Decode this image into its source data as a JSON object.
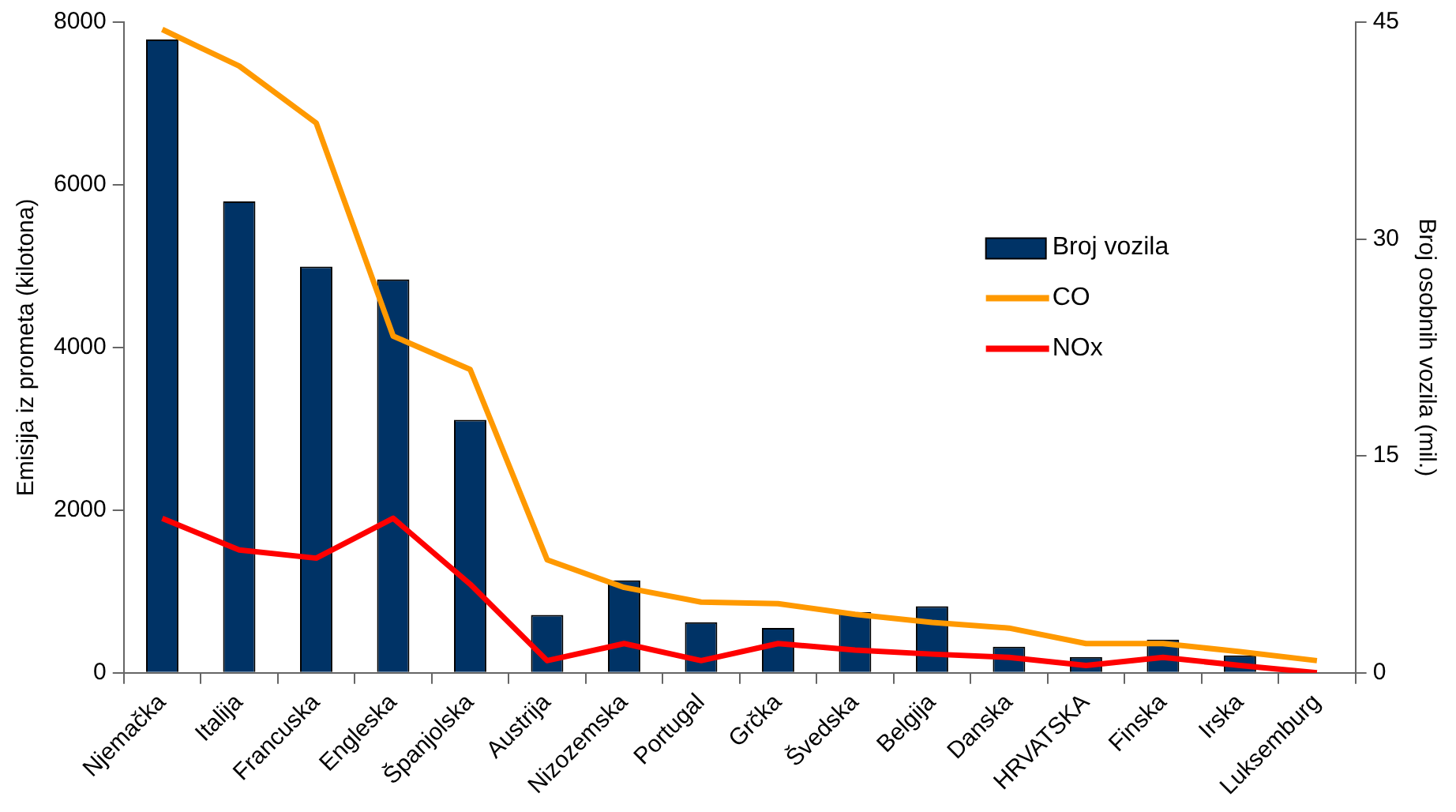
{
  "chart_data": {
    "type": "bar",
    "ylabel": "Emisija iz prometa (kilotona)",
    "y2label": "Broj osobnih vozila (mil.)",
    "categories": [
      "Njemačka",
      "Italija",
      "Francuska",
      "Engleska",
      "Španjolska",
      "Austrija",
      "Nizozemska",
      "Portugal",
      "Grčka",
      "Švedska",
      "Belgija",
      "Danska",
      "HRVATSKA",
      "Finska",
      "Irska",
      "Luksemburg"
    ],
    "series": [
      {
        "name": "Broj vozila",
        "axis": "y2",
        "color": "#003366",
        "values": [
          43.8,
          32.6,
          28.1,
          27.2,
          17.5,
          4.0,
          6.4,
          3.5,
          3.1,
          4.2,
          4.6,
          1.8,
          1.1,
          2.3,
          1.2,
          null
        ]
      },
      {
        "name": "CO",
        "type": "line",
        "color": "#ff9900",
        "values": [
          7910,
          7460,
          6760,
          4140,
          3730,
          1390,
          1050,
          870,
          850,
          720,
          620,
          550,
          360,
          360,
          260,
          150
        ]
      },
      {
        "name": "NOx",
        "type": "line",
        "color": "#ff0000",
        "values": [
          1900,
          1510,
          1410,
          1900,
          1090,
          150,
          360,
          150,
          360,
          280,
          230,
          190,
          90,
          190,
          90,
          0
        ]
      }
    ],
    "ylim": [
      0,
      8000
    ],
    "yticks": [
      0,
      2000,
      4000,
      6000,
      8000
    ],
    "y2lim": [
      0,
      45
    ],
    "y2ticks": [
      0,
      15,
      30,
      45
    ],
    "grid": false,
    "legend": "right",
    "marker": "none"
  }
}
